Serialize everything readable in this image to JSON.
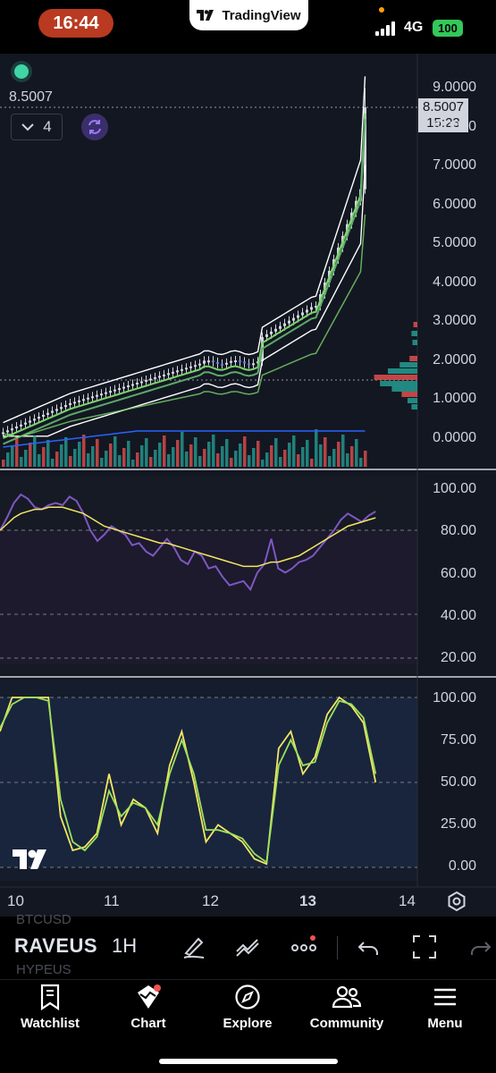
{
  "status_bar": {
    "time": "16:44",
    "app_name": "TradingView",
    "network": "4G",
    "battery": "100"
  },
  "chart": {
    "current_price": "8.5007",
    "collapse_count": "4",
    "last_price_tag": {
      "price": "8.5007",
      "countdown": "15:23"
    },
    "price_axis": [
      "9.0000",
      "8.0000",
      "7.0000",
      "6.0000",
      "5.0000",
      "4.0000",
      "3.0000",
      "2.0000",
      "1.0000",
      "0.0000"
    ],
    "rsi_axis": [
      "100.00",
      "80.00",
      "60.00",
      "40.00",
      "20.00"
    ],
    "stoch_axis": [
      "100.00",
      "75.00",
      "50.00",
      "25.00",
      "0.00"
    ],
    "date_axis": [
      "10",
      "11",
      "12",
      "13",
      "14"
    ],
    "colors": {
      "background": "#131722",
      "up": "#26a69a",
      "down": "#ef5350",
      "bb_band": "#ffffff",
      "ma_green": "#7bd36b",
      "volume_ma": "#2962ff",
      "rsi_line": "#7e57c2",
      "rsi_ma": "#f5e663",
      "stoch_k": "#f5e663",
      "stoch_d": "#9be15d"
    }
  },
  "toolbar": {
    "symbol_ghost_top": "BTCUSD",
    "symbol": "RAVEUS",
    "symbol_ghost_bottom": "HYPEUS",
    "interval": "1H",
    "icons": [
      "drawing-pen-icon",
      "indicators-icon",
      "more-icon",
      "undo-icon",
      "fullscreen-icon",
      "redo-icon"
    ]
  },
  "tabs": [
    {
      "label": "Watchlist",
      "icon": "bookmark-icon"
    },
    {
      "label": "Chart",
      "icon": "chart-icon"
    },
    {
      "label": "Explore",
      "icon": "compass-icon"
    },
    {
      "label": "Community",
      "icon": "people-icon"
    },
    {
      "label": "Menu",
      "icon": "hamburger-icon"
    }
  ]
}
